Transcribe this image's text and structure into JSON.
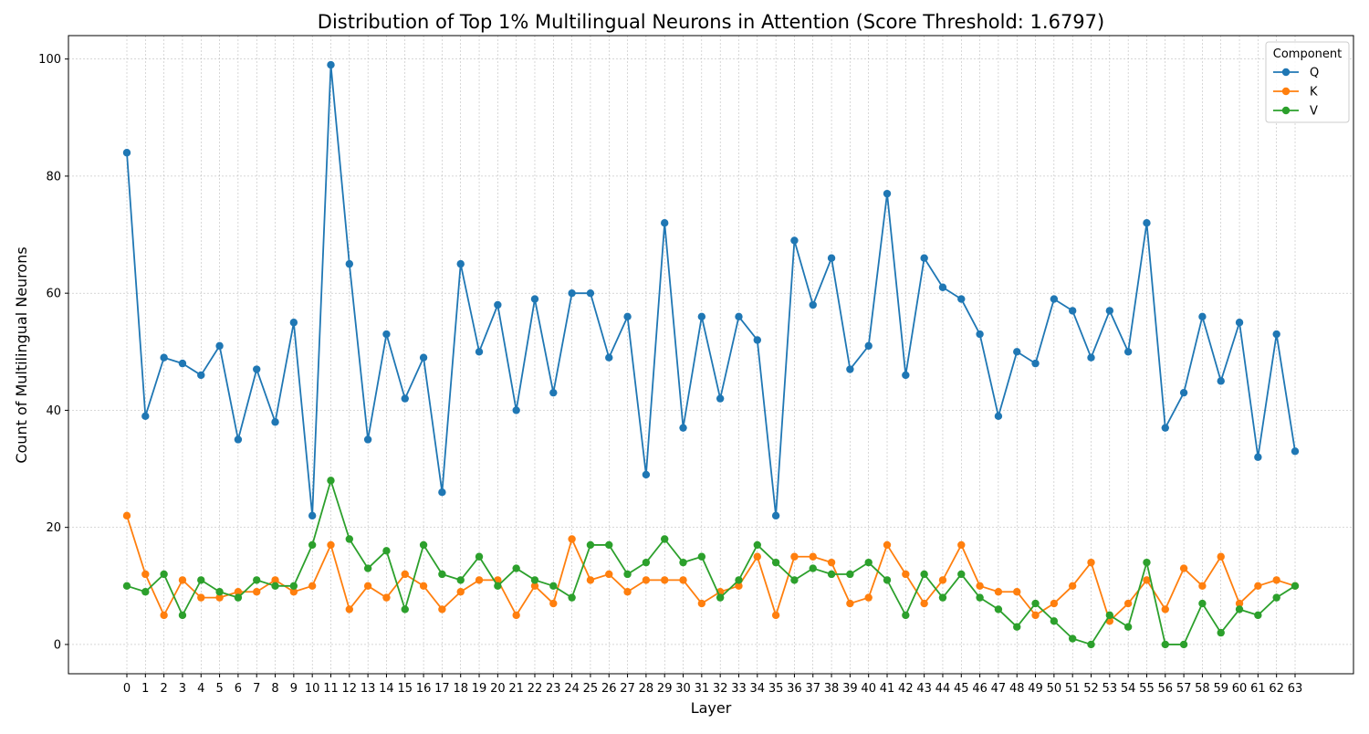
{
  "chart_data": {
    "type": "line",
    "title": "Distribution of Top 1% Multilingual Neurons in Attention (Score Threshold: 1.6797)",
    "xlabel": "Layer",
    "ylabel": "Count of Multilingual Neurons",
    "x": [
      0,
      1,
      2,
      3,
      4,
      5,
      6,
      7,
      8,
      9,
      10,
      11,
      12,
      13,
      14,
      15,
      16,
      17,
      18,
      19,
      20,
      21,
      22,
      23,
      24,
      25,
      26,
      27,
      28,
      29,
      30,
      31,
      32,
      33,
      34,
      35,
      36,
      37,
      38,
      39,
      40,
      41,
      42,
      43,
      44,
      45,
      46,
      47,
      48,
      49,
      50,
      51,
      52,
      53,
      54,
      55,
      56,
      57,
      58,
      59,
      60,
      61,
      62,
      63
    ],
    "ylim": [
      -5,
      104
    ],
    "yticks": [
      0,
      20,
      40,
      60,
      80,
      100
    ],
    "grid": true,
    "legend": {
      "title": "Component",
      "placement": "top-right"
    },
    "series": [
      {
        "name": "Q",
        "color": "#1f77b4",
        "values": [
          84,
          39,
          49,
          48,
          46,
          51,
          35,
          47,
          38,
          55,
          22,
          99,
          65,
          35,
          53,
          42,
          49,
          26,
          65,
          50,
          58,
          40,
          59,
          43,
          60,
          60,
          49,
          56,
          29,
          72,
          37,
          56,
          42,
          56,
          52,
          22,
          69,
          58,
          66,
          47,
          51,
          77,
          46,
          66,
          61,
          59,
          53,
          39,
          50,
          48,
          59,
          57,
          49,
          57,
          50,
          72,
          37,
          43,
          56,
          45,
          55,
          32,
          53,
          33
        ]
      },
      {
        "name": "K",
        "color": "#ff7f0e",
        "values": [
          22,
          12,
          5,
          11,
          8,
          8,
          9,
          9,
          11,
          9,
          10,
          17,
          6,
          10,
          8,
          12,
          10,
          6,
          9,
          11,
          11,
          5,
          10,
          7,
          18,
          11,
          12,
          9,
          11,
          11,
          11,
          7,
          9,
          10,
          15,
          5,
          15,
          15,
          14,
          7,
          8,
          17,
          12,
          7,
          11,
          17,
          10,
          9,
          9,
          5,
          7,
          10,
          14,
          4,
          7,
          11,
          6,
          13,
          10,
          15,
          7,
          10,
          11,
          10
        ]
      },
      {
        "name": "V",
        "color": "#2ca02c",
        "values": [
          10,
          9,
          12,
          5,
          11,
          9,
          8,
          11,
          10,
          10,
          17,
          28,
          18,
          13,
          16,
          6,
          17,
          12,
          11,
          15,
          10,
          13,
          11,
          10,
          8,
          17,
          17,
          12,
          14,
          18,
          14,
          15,
          8,
          11,
          17,
          14,
          11,
          13,
          12,
          12,
          14,
          11,
          5,
          12,
          8,
          12,
          8,
          6,
          3,
          7,
          4,
          1,
          0,
          5,
          3,
          14,
          0,
          0,
          7,
          2,
          6,
          5,
          8,
          10
        ]
      }
    ]
  }
}
